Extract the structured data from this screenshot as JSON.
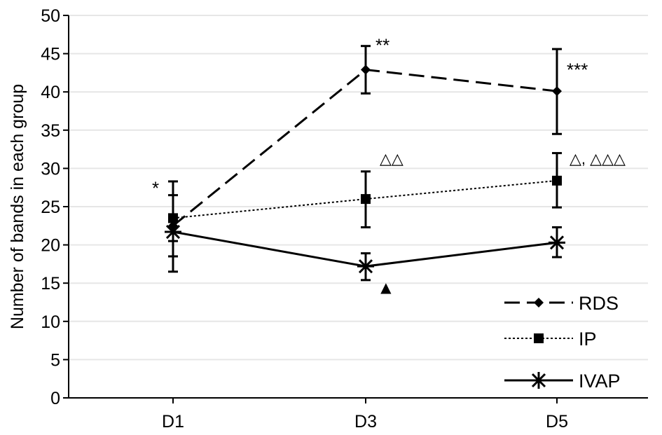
{
  "chart_data": {
    "type": "line",
    "title": "",
    "xlabel": "",
    "ylabel": "Number of bands in each group",
    "categories": [
      "D1",
      "D3",
      "D5"
    ],
    "ylim": [
      0,
      50
    ],
    "yticks": [
      0,
      5,
      10,
      15,
      20,
      25,
      30,
      35,
      40,
      45,
      50
    ],
    "grid": true,
    "legend_placement": "bottom-right",
    "series": [
      {
        "name": "RDS",
        "line": "dashed",
        "marker": "diamond",
        "values": [
          22.5,
          42.9,
          40.1
        ],
        "err_high": [
          28.3,
          46.0,
          45.6
        ],
        "err_low": [
          16.5,
          39.8,
          34.5
        ]
      },
      {
        "name": "IP",
        "line": "dotted",
        "marker": "square",
        "values": [
          23.5,
          26.0,
          28.4
        ],
        "err_high": [
          26.5,
          29.6,
          32.0
        ],
        "err_low": [
          20.5,
          22.3,
          24.9
        ]
      },
      {
        "name": "IVAP",
        "line": "solid",
        "marker": "asterisk",
        "values": [
          21.7,
          17.2,
          20.3
        ],
        "err_high": [
          23.0,
          18.9,
          22.3
        ],
        "err_low": [
          18.5,
          15.4,
          18.4
        ]
      }
    ],
    "annotations": [
      {
        "text": "*",
        "category": "D1",
        "y": 27.5,
        "color": "#000000"
      },
      {
        "text": "**",
        "category": "D3",
        "y": 46.2,
        "color": "#000000"
      },
      {
        "text": "***",
        "category": "D5",
        "y": 43.0,
        "color": "#000000"
      },
      {
        "text": "△△",
        "category": "D3",
        "y": 31.5,
        "color": "#555555"
      },
      {
        "text": "△, △△△",
        "category": "D5",
        "y": 31.5,
        "color": "#555555"
      },
      {
        "text": "▲",
        "category": "D3",
        "y": 14.5,
        "color": "#000000"
      }
    ]
  }
}
